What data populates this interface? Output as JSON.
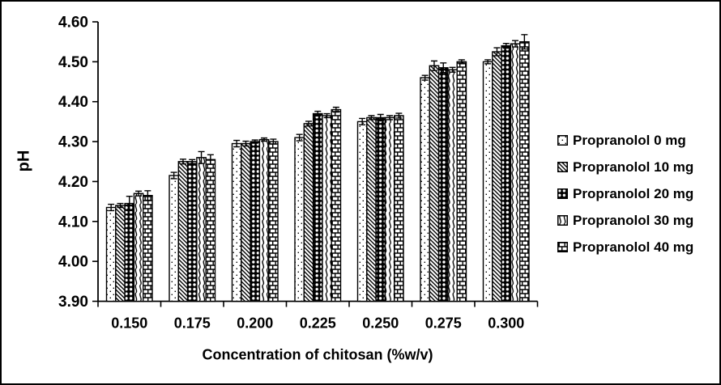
{
  "figure": {
    "background": "#ffffff",
    "border_color": "#000000",
    "foreground": "#000000"
  },
  "chart_data": {
    "type": "bar",
    "title": "",
    "xlabel": "Concentration of chitosan (%w/v)",
    "ylabel": "pH",
    "ylim": [
      3.9,
      4.6
    ],
    "ytick_step": 0.1,
    "ytick_labels": [
      "3.90",
      "4.00",
      "4.10",
      "4.20",
      "4.30",
      "4.40",
      "4.50",
      "4.60"
    ],
    "grid": false,
    "legend_position": "right",
    "bar_fill_style": "black-and-white patterns",
    "error_bars": true,
    "categories": [
      "0.150",
      "0.175",
      "0.200",
      "0.225",
      "0.250",
      "0.275",
      "0.300"
    ],
    "series": [
      {
        "name": "Propranolol 0 mg",
        "pattern": "dots",
        "values": [
          4.135,
          4.215,
          4.295,
          4.31,
          4.35,
          4.46,
          4.5
        ],
        "errors": [
          0.008,
          0.008,
          0.008,
          0.008,
          0.008,
          0.006,
          0.005
        ]
      },
      {
        "name": "Propranolol 10 mg",
        "pattern": "diagonal",
        "values": [
          4.14,
          4.25,
          4.295,
          4.345,
          4.36,
          4.49,
          4.525
        ],
        "errors": [
          0.005,
          0.006,
          0.006,
          0.006,
          0.005,
          0.012,
          0.01
        ]
      },
      {
        "name": "Propranolol 20 mg",
        "pattern": "rings",
        "values": [
          4.145,
          4.25,
          4.3,
          4.37,
          4.36,
          4.485,
          4.54
        ],
        "errors": [
          0.018,
          0.005,
          0.004,
          0.006,
          0.008,
          0.012,
          0.006
        ]
      },
      {
        "name": "Propranolol 30 mg",
        "pattern": "waves",
        "values": [
          4.17,
          4.26,
          4.305,
          4.365,
          4.36,
          4.48,
          4.545
        ],
        "errors": [
          0.006,
          0.015,
          0.004,
          0.005,
          0.005,
          0.006,
          0.008
        ]
      },
      {
        "name": "Propranolol 40 mg",
        "pattern": "bricks",
        "values": [
          4.165,
          4.255,
          4.3,
          4.38,
          4.365,
          4.5,
          4.55
        ],
        "errors": [
          0.012,
          0.012,
          0.006,
          0.006,
          0.006,
          0.005,
          0.018
        ]
      }
    ]
  }
}
